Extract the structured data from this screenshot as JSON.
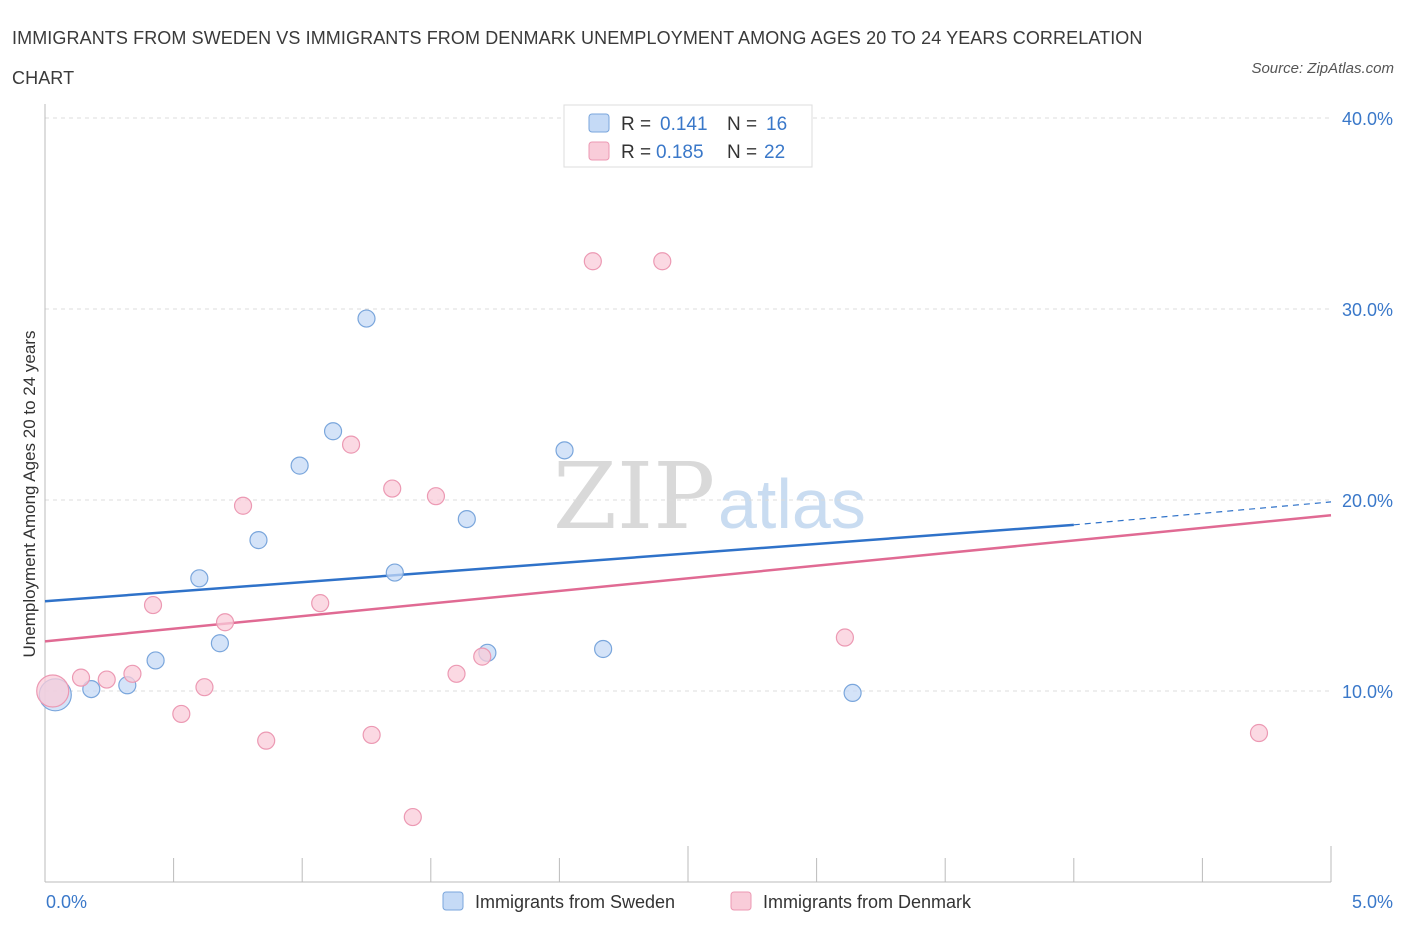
{
  "title": "IMMIGRANTS FROM SWEDEN VS IMMIGRANTS FROM DENMARK UNEMPLOYMENT AMONG AGES 20 TO 24 YEARS CORRELATION CHART",
  "source": "Source: ZipAtlas.com",
  "watermark": {
    "zip": "ZIP",
    "atlas": "atlas"
  },
  "legend_top": {
    "rows": [
      {
        "r_label": "R = ",
        "r_value": "0.141",
        "n_label": "N = ",
        "n_value": "16"
      },
      {
        "r_label": "R = ",
        "r_value": "0.185",
        "n_label": "N = ",
        "n_value": "22"
      }
    ]
  },
  "legend_bottom": {
    "sweden": "Immigrants from Sweden",
    "denmark": "Immigrants from Denmark"
  },
  "chart_data": {
    "type": "scatter",
    "title": "IMMIGRANTS FROM SWEDEN VS IMMIGRANTS FROM DENMARK UNEMPLOYMENT AMONG AGES 20 TO 24 YEARS CORRELATION CHART",
    "xlabel": "",
    "ylabel": "Unemployment Among Ages 20 to 24 years",
    "xlim": [
      0,
      5
    ],
    "ylim": [
      0,
      40
    ],
    "x_tick_labels": [
      "0.0%",
      "5.0%"
    ],
    "y_ticks": [
      10,
      20,
      30,
      40
    ],
    "y_tick_labels": [
      "10.0%",
      "20.0%",
      "30.0%",
      "40.0%"
    ],
    "grid": true,
    "legend_position": "top-center",
    "colors": {
      "sweden_fill": "#c5daf6",
      "sweden_stroke": "#7aa6dc",
      "sweden_line": "#2f72c9",
      "denmark_fill": "#f9ccd9",
      "denmark_stroke": "#ec99b3",
      "denmark_line": "#e06a93"
    },
    "series": [
      {
        "name": "Immigrants from Sweden",
        "R": 0.141,
        "N": 16,
        "points": [
          {
            "x": 0.04,
            "y": 9.8,
            "big": true
          },
          {
            "x": 0.18,
            "y": 10.1
          },
          {
            "x": 0.32,
            "y": 10.3
          },
          {
            "x": 0.43,
            "y": 11.6
          },
          {
            "x": 0.6,
            "y": 15.9
          },
          {
            "x": 0.68,
            "y": 12.5
          },
          {
            "x": 0.83,
            "y": 17.9
          },
          {
            "x": 0.99,
            "y": 21.8
          },
          {
            "x": 1.12,
            "y": 23.6
          },
          {
            "x": 1.25,
            "y": 29.5
          },
          {
            "x": 1.36,
            "y": 16.2
          },
          {
            "x": 1.64,
            "y": 19.0
          },
          {
            "x": 1.72,
            "y": 12.0
          },
          {
            "x": 2.02,
            "y": 22.6
          },
          {
            "x": 2.17,
            "y": 12.2
          },
          {
            "x": 3.14,
            "y": 9.9
          }
        ],
        "trend": {
          "x0": 0.0,
          "y0": 14.7,
          "x1": 4.0,
          "y1": 18.7,
          "dash_to_x": 5.0,
          "dash_to_y": 19.9
        }
      },
      {
        "name": "Immigrants from Denmark",
        "R": 0.185,
        "N": 22,
        "points": [
          {
            "x": 0.03,
            "y": 10.0,
            "big": true
          },
          {
            "x": 0.14,
            "y": 10.7
          },
          {
            "x": 0.24,
            "y": 10.6
          },
          {
            "x": 0.34,
            "y": 10.9
          },
          {
            "x": 0.42,
            "y": 14.5
          },
          {
            "x": 0.53,
            "y": 8.8
          },
          {
            "x": 0.62,
            "y": 10.2
          },
          {
            "x": 0.7,
            "y": 13.6
          },
          {
            "x": 0.77,
            "y": 19.7
          },
          {
            "x": 0.86,
            "y": 7.4
          },
          {
            "x": 1.07,
            "y": 14.6
          },
          {
            "x": 1.19,
            "y": 22.9
          },
          {
            "x": 1.27,
            "y": 7.7
          },
          {
            "x": 1.35,
            "y": 20.6
          },
          {
            "x": 1.43,
            "y": 3.4
          },
          {
            "x": 1.52,
            "y": 20.2
          },
          {
            "x": 1.6,
            "y": 10.9
          },
          {
            "x": 1.7,
            "y": 11.8
          },
          {
            "x": 2.13,
            "y": 32.5
          },
          {
            "x": 2.4,
            "y": 32.5
          },
          {
            "x": 3.11,
            "y": 12.8
          },
          {
            "x": 4.72,
            "y": 7.8
          }
        ],
        "trend": {
          "x0": 0.0,
          "y0": 12.6,
          "x1": 5.0,
          "y1": 19.2
        }
      }
    ]
  }
}
